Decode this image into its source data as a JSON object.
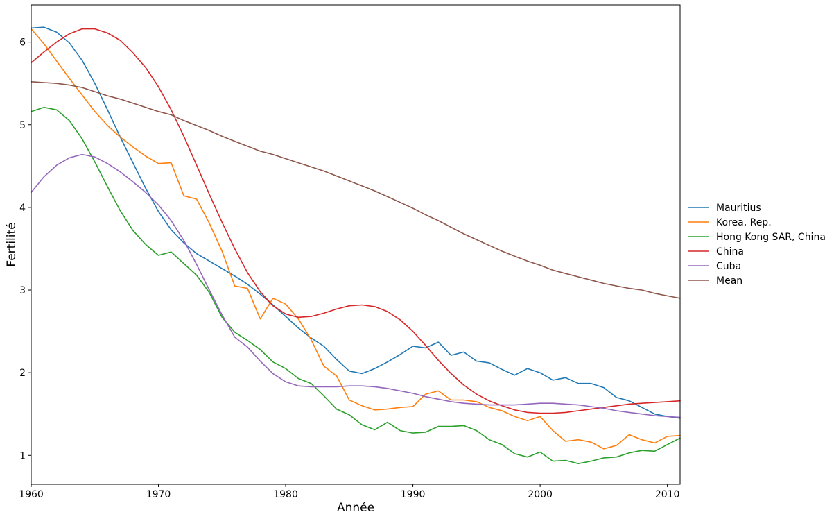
{
  "chart_data": {
    "type": "line",
    "xlabel": "Année",
    "ylabel": "Fertilité",
    "xlim": [
      1960,
      2011
    ],
    "ylim": [
      0.65,
      6.45
    ],
    "xticks": [
      1960,
      1970,
      1980,
      1990,
      2000,
      2010
    ],
    "yticks": [
      1,
      2,
      3,
      4,
      5,
      6
    ],
    "grid": false,
    "legend_position": "right",
    "x": [
      1960,
      1961,
      1962,
      1963,
      1964,
      1965,
      1966,
      1967,
      1968,
      1969,
      1970,
      1971,
      1972,
      1973,
      1974,
      1975,
      1976,
      1977,
      1978,
      1979,
      1980,
      1981,
      1982,
      1983,
      1984,
      1985,
      1986,
      1987,
      1988,
      1989,
      1990,
      1991,
      1992,
      1993,
      1994,
      1995,
      1996,
      1997,
      1998,
      1999,
      2000,
      2001,
      2002,
      2003,
      2004,
      2005,
      2006,
      2007,
      2008,
      2009,
      2010,
      2011
    ],
    "series": [
      {
        "name": "Mauritius",
        "color": "#1f77b4",
        "values": [
          6.17,
          6.18,
          6.12,
          5.99,
          5.78,
          5.5,
          5.18,
          4.85,
          4.54,
          4.23,
          3.95,
          3.73,
          3.57,
          3.44,
          3.35,
          3.26,
          3.17,
          3.07,
          2.95,
          2.82,
          2.68,
          2.54,
          2.42,
          2.32,
          2.16,
          2.02,
          1.99,
          2.05,
          2.13,
          2.22,
          2.32,
          2.3,
          2.37,
          2.21,
          2.25,
          2.14,
          2.12,
          2.04,
          1.97,
          2.05,
          2.0,
          1.91,
          1.94,
          1.87,
          1.87,
          1.82,
          1.7,
          1.66,
          1.58,
          1.5,
          1.47,
          1.45
        ]
      },
      {
        "name": "Korea, Rep.",
        "color": "#ff7f0e",
        "values": [
          6.16,
          5.98,
          5.77,
          5.56,
          5.36,
          5.16,
          4.99,
          4.85,
          4.73,
          4.62,
          4.53,
          4.54,
          4.14,
          4.1,
          3.81,
          3.47,
          3.05,
          3.02,
          2.65,
          2.9,
          2.83,
          2.65,
          2.4,
          2.08,
          1.96,
          1.67,
          1.6,
          1.55,
          1.56,
          1.58,
          1.59,
          1.74,
          1.78,
          1.67,
          1.67,
          1.65,
          1.58,
          1.54,
          1.47,
          1.42,
          1.47,
          1.3,
          1.17,
          1.19,
          1.16,
          1.08,
          1.12,
          1.25,
          1.19,
          1.15,
          1.23,
          1.24
        ]
      },
      {
        "name": "Hong Kong SAR, China",
        "color": "#2ca02c",
        "values": [
          5.16,
          5.21,
          5.18,
          5.05,
          4.83,
          4.55,
          4.25,
          3.96,
          3.72,
          3.55,
          3.42,
          3.46,
          3.32,
          3.18,
          2.97,
          2.67,
          2.49,
          2.39,
          2.28,
          2.13,
          2.05,
          1.93,
          1.87,
          1.72,
          1.56,
          1.49,
          1.37,
          1.31,
          1.4,
          1.3,
          1.27,
          1.28,
          1.35,
          1.35,
          1.36,
          1.3,
          1.19,
          1.13,
          1.02,
          0.98,
          1.04,
          0.93,
          0.94,
          0.9,
          0.93,
          0.97,
          0.98,
          1.03,
          1.06,
          1.05,
          1.13,
          1.21
        ]
      },
      {
        "name": "China",
        "color": "#d62728",
        "values": [
          5.75,
          5.88,
          6.0,
          6.1,
          6.16,
          6.16,
          6.11,
          6.02,
          5.87,
          5.69,
          5.46,
          5.18,
          4.86,
          4.51,
          4.16,
          3.82,
          3.5,
          3.21,
          2.98,
          2.81,
          2.71,
          2.67,
          2.68,
          2.72,
          2.77,
          2.81,
          2.82,
          2.8,
          2.74,
          2.64,
          2.5,
          2.33,
          2.15,
          1.99,
          1.85,
          1.74,
          1.66,
          1.6,
          1.55,
          1.52,
          1.51,
          1.51,
          1.52,
          1.54,
          1.56,
          1.58,
          1.6,
          1.62,
          1.63,
          1.64,
          1.65,
          1.66
        ]
      },
      {
        "name": "Cuba",
        "color": "#9467bd",
        "values": [
          4.18,
          4.37,
          4.51,
          4.6,
          4.64,
          4.61,
          4.53,
          4.43,
          4.31,
          4.18,
          4.03,
          3.84,
          3.6,
          3.31,
          3.0,
          2.7,
          2.43,
          2.31,
          2.14,
          1.99,
          1.89,
          1.84,
          1.83,
          1.83,
          1.83,
          1.84,
          1.84,
          1.83,
          1.81,
          1.78,
          1.75,
          1.71,
          1.68,
          1.65,
          1.63,
          1.62,
          1.61,
          1.61,
          1.61,
          1.62,
          1.63,
          1.63,
          1.62,
          1.61,
          1.59,
          1.57,
          1.54,
          1.52,
          1.5,
          1.48,
          1.47,
          1.46
        ]
      },
      {
        "name": "Mean",
        "color": "#8c564b",
        "values": [
          5.52,
          5.51,
          5.5,
          5.48,
          5.45,
          5.4,
          5.35,
          5.31,
          5.26,
          5.21,
          5.16,
          5.12,
          5.05,
          4.99,
          4.93,
          4.86,
          4.8,
          4.74,
          4.68,
          4.64,
          4.59,
          4.54,
          4.49,
          4.44,
          4.38,
          4.32,
          4.26,
          4.2,
          4.13,
          4.06,
          3.99,
          3.91,
          3.84,
          3.76,
          3.68,
          3.61,
          3.54,
          3.47,
          3.41,
          3.35,
          3.3,
          3.24,
          3.2,
          3.16,
          3.12,
          3.08,
          3.05,
          3.02,
          3.0,
          2.96,
          2.93,
          2.9
        ]
      }
    ]
  }
}
